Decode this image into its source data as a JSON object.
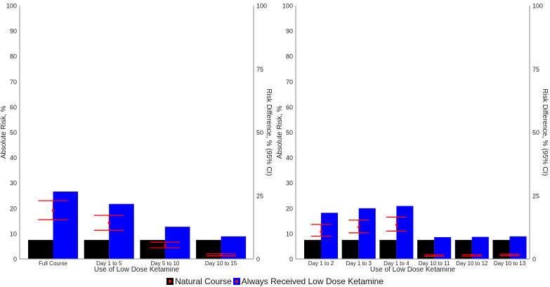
{
  "chart_data": [
    {
      "type": "bar",
      "ylabel": "Absolute Risk, %",
      "ylabel_right": "Risk Difference, % (95% CI)",
      "xlabel": "Use of Low Dose Ketamine",
      "ylim": [
        0,
        100
      ],
      "yticks": [
        0,
        10,
        20,
        30,
        40,
        50,
        60,
        70,
        80,
        90,
        100
      ],
      "yticks_right": [
        0,
        25,
        50,
        75,
        100
      ],
      "categories": [
        "Full Course",
        "Day 1 to 5",
        "Day 5 to 10",
        "Day 10 to 15"
      ],
      "series": [
        {
          "name": "Natural Course",
          "color": "#000000",
          "values": [
            7.5,
            7.5,
            7.5,
            7.5
          ]
        },
        {
          "name": "Always Received Low Dose Ketamine",
          "color": "#0000ff",
          "values": [
            26.6,
            21.7,
            12.7,
            8.9
          ]
        }
      ],
      "risk_difference": {
        "color": "#ff0000",
        "values": [
          19.1,
          14.2,
          5.3,
          1.6
        ],
        "lower": [
          15.5,
          11.3,
          4.4,
          1.2
        ],
        "upper": [
          23.0,
          17.2,
          6.6,
          2.0
        ]
      }
    },
    {
      "type": "bar",
      "ylabel": "Absolute Risk, %",
      "ylabel_right": "Risk Difference, % (95% CI)",
      "xlabel": "Use of Low Dose Ketamine",
      "ylim": [
        0,
        100
      ],
      "yticks": [
        0,
        10,
        20,
        30,
        40,
        50,
        60,
        70,
        80,
        90,
        100
      ],
      "yticks_right": [
        0,
        25,
        50,
        75,
        100
      ],
      "categories": [
        "Day 1 to 2",
        "Day 1 to 3",
        "Day 1 to 4",
        "Day 10 to 11",
        "Day 10 to 12",
        "Day 10 to 13"
      ],
      "series": [
        {
          "name": "Natural Course",
          "color": "#000000",
          "values": [
            7.5,
            7.5,
            7.5,
            7.5,
            7.5,
            7.5
          ]
        },
        {
          "name": "Always Received Low Dose Ketamine",
          "color": "#0000ff",
          "values": [
            18.2,
            20.0,
            20.9,
            8.6,
            8.7,
            8.9
          ]
        }
      ],
      "risk_difference": {
        "color": "#ff0000",
        "values": [
          10.8,
          12.6,
          13.4,
          1.3,
          1.4,
          1.6
        ],
        "lower": [
          9.0,
          10.3,
          11.0,
          1.0,
          1.1,
          1.3
        ],
        "upper": [
          13.6,
          15.3,
          16.5,
          1.6,
          1.7,
          1.9
        ]
      }
    }
  ],
  "legend": {
    "items": [
      "Natural Course",
      "Always Received Low Dose Ketamine"
    ],
    "position": "bottom"
  }
}
